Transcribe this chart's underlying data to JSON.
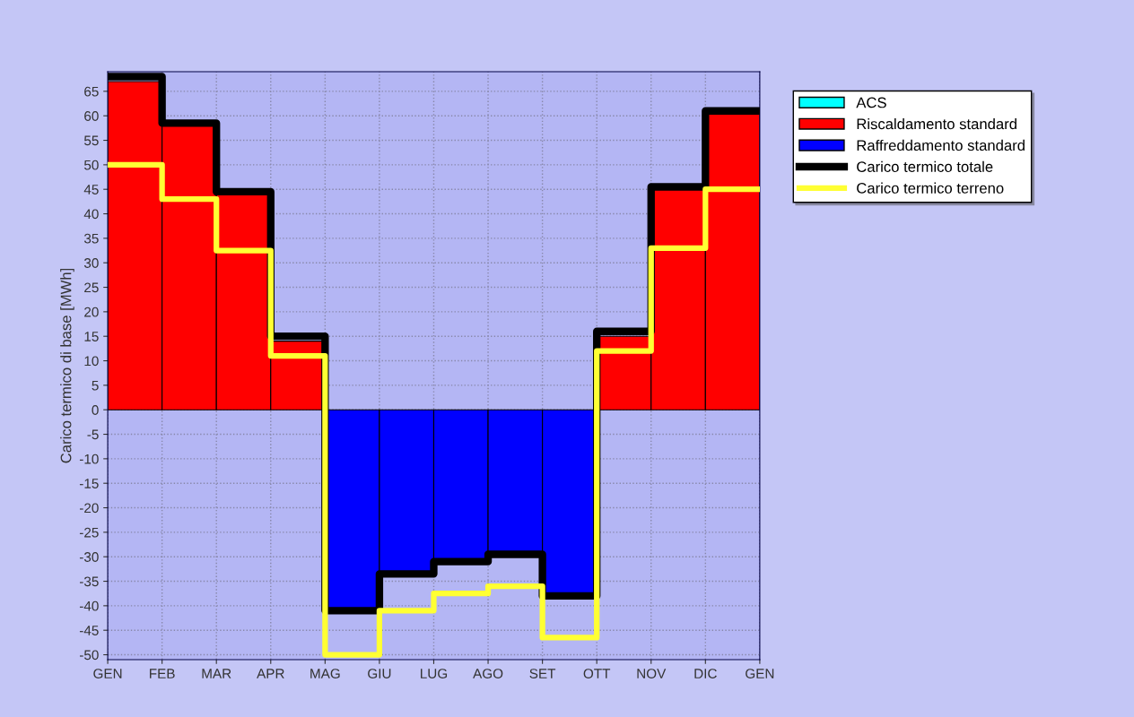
{
  "chart_data": {
    "type": "bar",
    "ylabel": "Carico termico di base [MWh]",
    "categories": [
      "GEN",
      "FEB",
      "MAR",
      "APR",
      "MAG",
      "GIU",
      "LUG",
      "AGO",
      "SET",
      "OTT",
      "NOV",
      "DIC",
      "GEN"
    ],
    "ylim": [
      -51,
      69
    ],
    "yticks": [
      -50,
      -45,
      -40,
      -35,
      -30,
      -25,
      -20,
      -15,
      -10,
      -5,
      0,
      5,
      10,
      15,
      20,
      25,
      30,
      35,
      40,
      45,
      50,
      55,
      60,
      65
    ],
    "grid": true,
    "legend": "top right",
    "series": [
      {
        "name": "ACS",
        "color": "#00ffff",
        "values": [
          null,
          null,
          null,
          null,
          null,
          null,
          null,
          null,
          null,
          null,
          null,
          null,
          null
        ]
      },
      {
        "name": "Riscaldamento standard",
        "color": "#ff0000",
        "values": [
          67,
          58,
          44,
          14,
          null,
          null,
          null,
          null,
          null,
          15,
          45,
          60.5,
          null
        ]
      },
      {
        "name": "Raffreddamento standard",
        "color": "#0000ff",
        "values": [
          null,
          null,
          null,
          null,
          -40.5,
          -33,
          -30.5,
          -29,
          -37.5,
          null,
          null,
          null,
          null
        ]
      },
      {
        "name": "Carico termico totale",
        "color": "#000000",
        "type": "step",
        "values": [
          68,
          58.5,
          44.5,
          15,
          -41,
          -33.5,
          -31,
          -29.5,
          -38,
          16,
          45.5,
          61,
          61
        ]
      },
      {
        "name": "Carico termico terreno",
        "color": "#ffff33",
        "type": "step",
        "values": [
          50,
          43,
          32.5,
          11,
          -50,
          -41,
          -37.5,
          -36,
          -46.5,
          12,
          33,
          45,
          45
        ]
      }
    ]
  }
}
